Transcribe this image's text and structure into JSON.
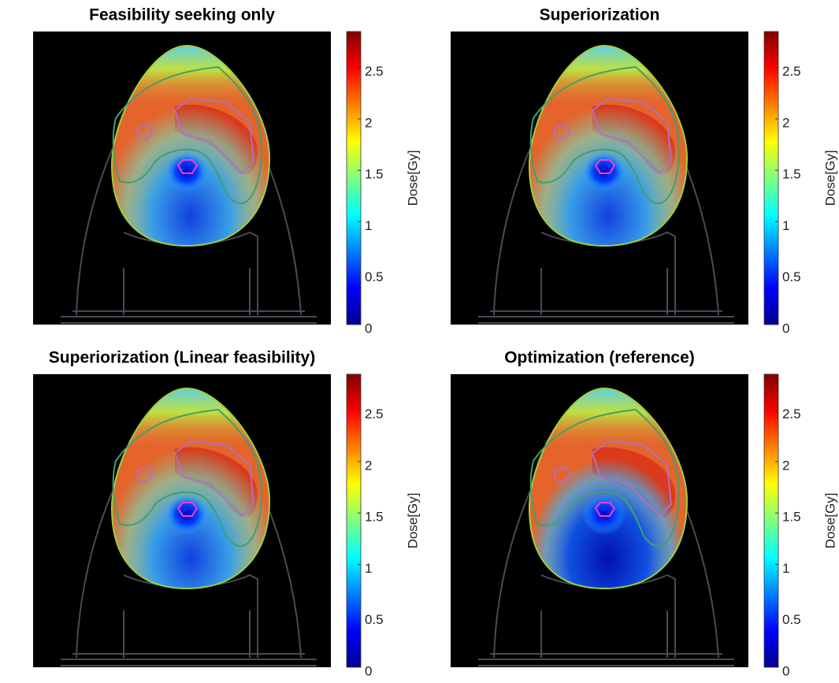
{
  "chart_data": [
    {
      "type": "image",
      "title": "Feasibility seeking only",
      "colorbar_label": "Dose[Gy]",
      "colormap": "jet",
      "clim": [
        0,
        2.85
      ],
      "cticks": [
        0,
        0.5,
        1,
        1.5,
        2,
        2.5
      ]
    },
    {
      "type": "image",
      "title": "Superiorization",
      "colorbar_label": "Dose[Gy]",
      "colormap": "jet",
      "clim": [
        0,
        2.85
      ],
      "cticks": [
        0,
        0.5,
        1,
        1.5,
        2,
        2.5
      ]
    },
    {
      "type": "image",
      "title": "Superiorization (Linear feasibility)",
      "colorbar_label": "Dose[Gy]",
      "colormap": "jet",
      "clim": [
        0,
        2.85
      ],
      "cticks": [
        0,
        0.5,
        1,
        1.5,
        2,
        2.5
      ]
    },
    {
      "type": "image",
      "title": "Optimization (reference)",
      "colorbar_label": "Dose[Gy]",
      "colormap": "jet",
      "clim": [
        0,
        2.85
      ],
      "cticks": [
        0,
        0.5,
        1,
        1.5,
        2,
        2.5
      ]
    }
  ]
}
